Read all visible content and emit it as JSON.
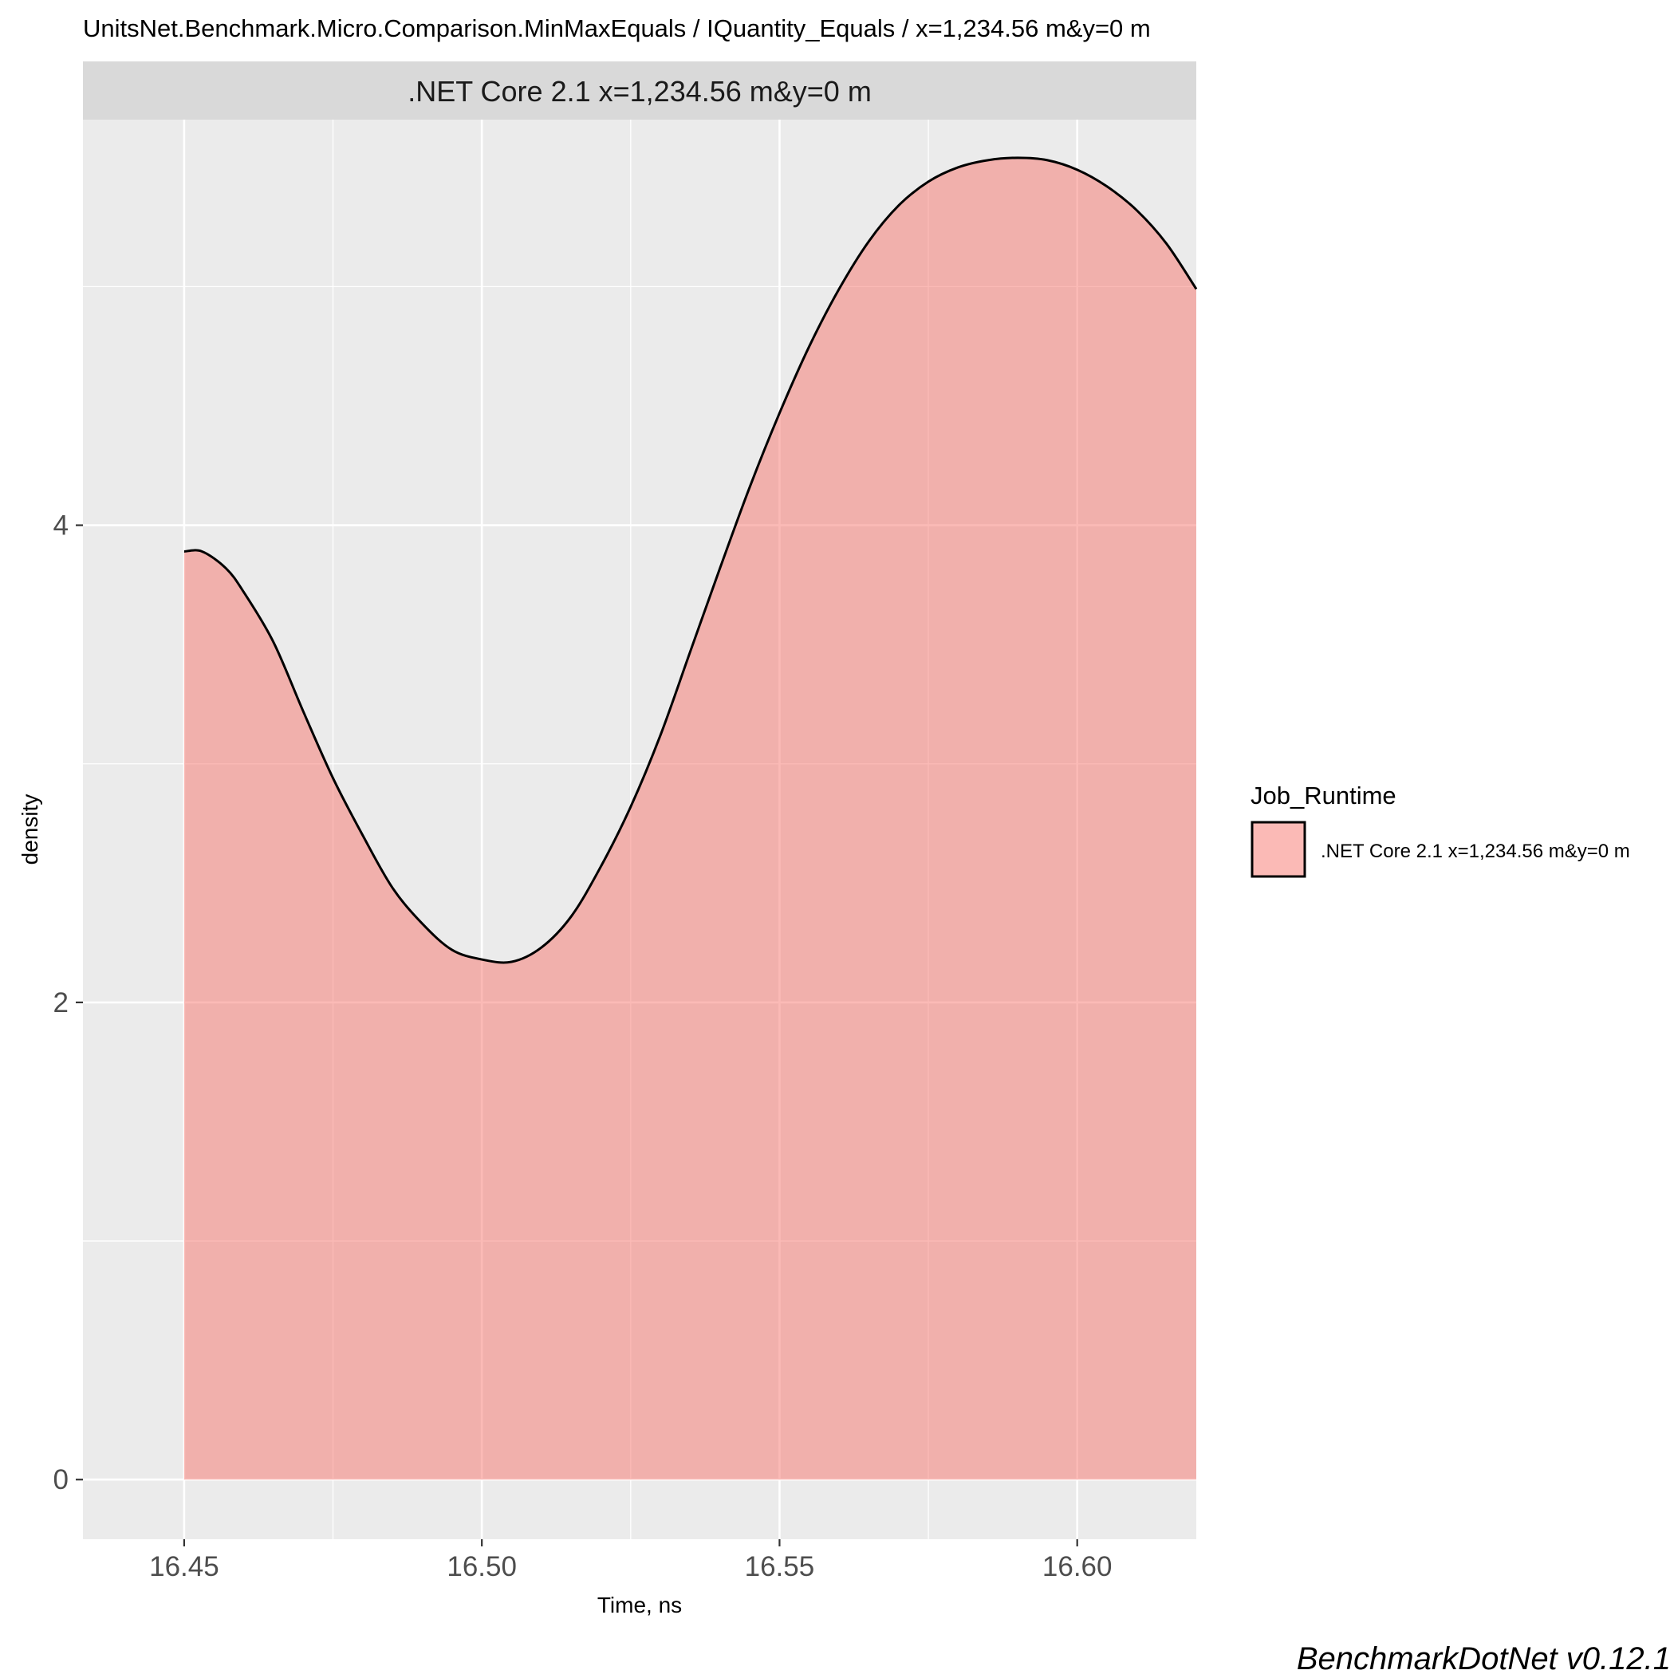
{
  "chart_data": {
    "type": "area",
    "title": "UnitsNet.Benchmark.Micro.Comparison.MinMaxEquals / IQuantity_Equals / x=1,234.56 m&y=0 m",
    "facet_label": ".NET Core 2.1 x=1,234.56 m&y=0 m",
    "xlabel": "Time, ns",
    "ylabel": "density",
    "xlim": [
      16.433,
      16.62
    ],
    "ylim": [
      -0.25,
      5.7
    ],
    "x_ticks": [
      16.45,
      16.5,
      16.55,
      16.6
    ],
    "x_tick_labels": [
      "16.45",
      "16.50",
      "16.55",
      "16.60"
    ],
    "y_ticks": [
      0,
      2,
      4
    ],
    "y_tick_labels": [
      "0",
      "2",
      "4"
    ],
    "grid": true,
    "legend": {
      "title": "Job_Runtime",
      "position": "right",
      "entries": [
        ".NET Core 2.1 x=1,234.56 m&y=0 m"
      ]
    },
    "series": [
      {
        "name": ".NET Core 2.1 x=1,234.56 m&y=0 m",
        "x": [
          16.45,
          16.453,
          16.457,
          16.46,
          16.465,
          16.47,
          16.475,
          16.48,
          16.485,
          16.49,
          16.495,
          16.5,
          16.505,
          16.51,
          16.515,
          16.52,
          16.525,
          16.53,
          16.535,
          16.54,
          16.545,
          16.55,
          16.555,
          16.56,
          16.565,
          16.57,
          16.575,
          16.58,
          16.585,
          16.59,
          16.595,
          16.6,
          16.605,
          16.61,
          16.615,
          16.62
        ],
        "y": [
          3.89,
          3.89,
          3.82,
          3.72,
          3.51,
          3.22,
          2.94,
          2.7,
          2.48,
          2.33,
          2.22,
          2.18,
          2.17,
          2.23,
          2.36,
          2.57,
          2.82,
          3.12,
          3.47,
          3.82,
          4.16,
          4.47,
          4.75,
          4.99,
          5.19,
          5.34,
          5.44,
          5.5,
          5.53,
          5.54,
          5.53,
          5.49,
          5.42,
          5.32,
          5.18,
          4.99
        ]
      }
    ],
    "colors": {
      "fill": "#f8766d",
      "fill_opacity": 0.5,
      "line": "#000000",
      "panel_bg": "#ebebeb",
      "strip_bg": "#d9d9d9",
      "grid": "#ffffff"
    }
  },
  "caption": "BenchmarkDotNet v0.12.1"
}
